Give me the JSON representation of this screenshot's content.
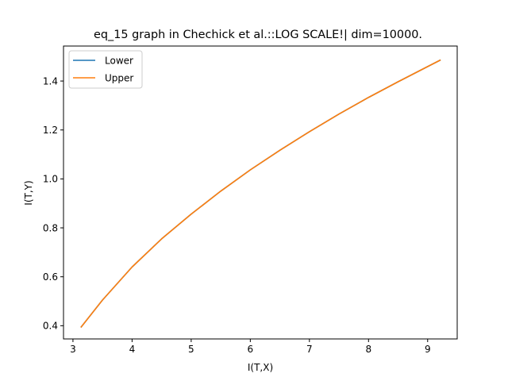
{
  "chart_data": {
    "type": "line",
    "title": "eq_15 graph in Chechick et al.::LOG SCALE!|  dim=10000.",
    "xlabel": "I(T,X)",
    "ylabel": "I(T,Y)",
    "xlim": [
      2.84,
      9.5
    ],
    "ylim": [
      0.346,
      1.543
    ],
    "xticks": [
      "3",
      "4",
      "5",
      "6",
      "7",
      "8",
      "9"
    ],
    "yticks": [
      "0.4",
      "0.6",
      "0.8",
      "1.0",
      "1.2",
      "1.4"
    ],
    "grid": false,
    "legend_position": "upper-left",
    "series": [
      {
        "name": "Lower",
        "color": "#1f77b4",
        "x": [
          3.14,
          3.5,
          4.0,
          4.5,
          5.0,
          5.5,
          6.0,
          6.5,
          7.0,
          7.5,
          8.0,
          8.5,
          9.0,
          9.21
        ],
        "y": [
          0.395,
          0.505,
          0.64,
          0.755,
          0.856,
          0.95,
          1.037,
          1.117,
          1.193,
          1.265,
          1.333,
          1.397,
          1.459,
          1.485
        ]
      },
      {
        "name": "Upper",
        "color": "#ff7f0e",
        "x": [
          3.14,
          3.5,
          4.0,
          4.5,
          5.0,
          5.5,
          6.0,
          6.5,
          7.0,
          7.5,
          8.0,
          8.5,
          9.0,
          9.21
        ],
        "y": [
          0.395,
          0.505,
          0.64,
          0.755,
          0.856,
          0.95,
          1.037,
          1.117,
          1.193,
          1.265,
          1.333,
          1.397,
          1.459,
          1.485
        ]
      }
    ]
  }
}
